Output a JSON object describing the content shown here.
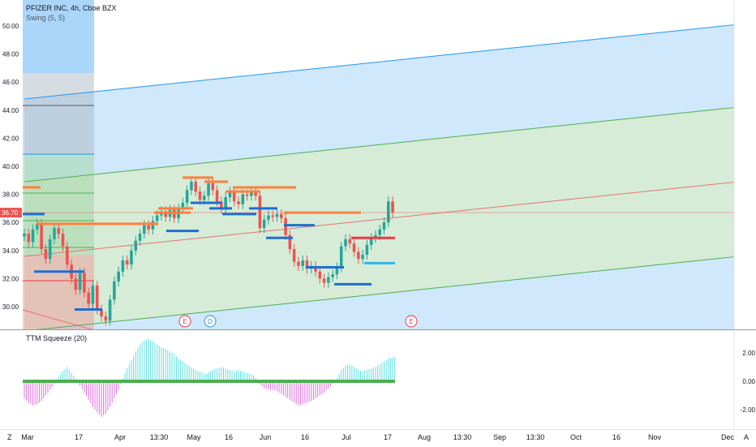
{
  "legend": {
    "symbol": "PFIZER INC, 4h, Cboe BZX",
    "indicator": "Swing (5, 5)"
  },
  "osc_legend": "TTM Squeeze (20)",
  "price_axis": [
    "50.00",
    "48.00",
    "46.00",
    "44.00",
    "42.00",
    "40.00",
    "38.00",
    "36.00",
    "34.00",
    "32.00",
    "30.00"
  ],
  "price_tag": "36.70",
  "osc_axis": [
    "2.00",
    "0.00",
    "-2.00"
  ],
  "events": [
    {
      "label": "E",
      "color": "#f23645"
    },
    {
      "label": "D",
      "color": "#2196f3"
    },
    {
      "label": "E",
      "color": "#f23645"
    }
  ],
  "time_axis": [
    "Mar",
    "17",
    "Apr",
    "13:30",
    "May",
    "16",
    "Jun",
    "16",
    "Jul",
    "17",
    "Aug",
    "13:30",
    "Sep",
    "13:30",
    "Oct",
    "16",
    "Nov",
    "Dec"
  ],
  "bottom_buttons": {
    "left": "Z",
    "right": "A"
  },
  "colors": {
    "bull": "#26a69a",
    "bear": "#ef5350",
    "channel_blue": "#2196f3",
    "channel_green": "#4caf50",
    "channel_red": "#e57373",
    "swing_orange": "#ff7f3f",
    "swing_blue": "#1e6fd0",
    "swing_red": "#f23645",
    "swing_cyan": "#30b4e6",
    "osc_pos": "#5ae0e0",
    "osc_neg": "#e070e0",
    "zero_line": "#4caf50",
    "tag_bg": "#ef5350"
  },
  "chart_data": {
    "type": "candlestick",
    "title": "PFIZER INC, 4h, Cboe BZX",
    "ylim": [
      29,
      51
    ],
    "last_price": 36.7,
    "closes": [
      35.2,
      34.6,
      35.5,
      35.9,
      34.1,
      33.4,
      34.8,
      35.6,
      35.2,
      34.3,
      33.0,
      32.0,
      31.2,
      32.4,
      31.0,
      30.2,
      31.5,
      29.8,
      29.3,
      29.0,
      30.5,
      31.8,
      32.5,
      33.3,
      33.0,
      34.0,
      34.7,
      35.2,
      35.8,
      35.5,
      36.1,
      36.5,
      36.8,
      36.4,
      36.9,
      36.3,
      37.0,
      37.4,
      38.3,
      38.9,
      38.2,
      37.6,
      37.9,
      38.8,
      38.3,
      37.5,
      37.0,
      37.8,
      38.2,
      37.5,
      37.3,
      38.0,
      37.9,
      38.2,
      37.9,
      35.6,
      36.2,
      36.5,
      36.4,
      36.6,
      36.3,
      35.1,
      34.1,
      33.2,
      32.9,
      33.3,
      32.7,
      32.9,
      32.5,
      32.0,
      31.7,
      32.1,
      32.3,
      32.8,
      34.3,
      34.8,
      34.5,
      33.9,
      33.4,
      33.7,
      34.4,
      34.9,
      35.1,
      35.5,
      36.0,
      37.5,
      36.7
    ],
    "ttm_squeeze": [
      -1.2,
      -1.5,
      -1.7,
      -1.6,
      -1.4,
      -1.0,
      -0.6,
      -0.2,
      0.3,
      0.7,
      1.0,
      0.6,
      0.2,
      -0.3,
      -0.8,
      -1.3,
      -1.8,
      -2.2,
      -2.5,
      -2.3,
      -1.8,
      -1.2,
      -0.6,
      0.2,
      0.9,
      1.5,
      2.1,
      2.6,
      2.9,
      3.0,
      2.8,
      2.6,
      2.4,
      2.3,
      2.1,
      1.9,
      1.6,
      1.4,
      1.2,
      1.0,
      0.8,
      0.7,
      0.5,
      0.6,
      0.8,
      0.9,
      1.0,
      0.9,
      0.8,
      0.7,
      0.8,
      0.7,
      0.6,
      0.5,
      0.3,
      -0.2,
      -0.5,
      -0.6,
      -0.6,
      -0.7,
      -0.9,
      -1.1,
      -1.3,
      -1.5,
      -1.7,
      -1.6,
      -1.5,
      -1.4,
      -1.2,
      -1.0,
      -0.8,
      -0.5,
      -0.2,
      0.2,
      0.8,
      1.1,
      1.2,
      1.0,
      0.8,
      0.7,
      0.8,
      0.9,
      1.0,
      1.2,
      1.4,
      1.6,
      1.7
    ],
    "swing_levels": [
      {
        "price": 38.5,
        "color": "orange"
      },
      {
        "price": 36.6,
        "color": "blue"
      },
      {
        "price": 35.9,
        "color": "orange"
      },
      {
        "price": 32.5,
        "color": "blue"
      },
      {
        "price": 29.8,
        "color": "blue"
      },
      {
        "price": 36.7,
        "color": "orange"
      },
      {
        "price": 37.0,
        "color": "orange"
      },
      {
        "price": 35.4,
        "color": "blue"
      },
      {
        "price": 39.2,
        "color": "orange"
      },
      {
        "price": 38.9,
        "color": "orange"
      },
      {
        "price": 37.4,
        "color": "blue"
      },
      {
        "price": 37.0,
        "color": "blue"
      },
      {
        "price": 38.5,
        "color": "orange"
      },
      {
        "price": 38.2,
        "color": "orange"
      },
      {
        "price": 36.6,
        "color": "blue"
      },
      {
        "price": 37.0,
        "color": "blue"
      },
      {
        "price": 36.7,
        "color": "orange"
      },
      {
        "price": 34.9,
        "color": "blue"
      },
      {
        "price": 35.8,
        "color": "blue"
      },
      {
        "price": 32.8,
        "color": "blue"
      },
      {
        "price": 31.6,
        "color": "blue"
      },
      {
        "price": 34.9,
        "color": "red"
      },
      {
        "price": 33.1,
        "color": "cyan"
      }
    ]
  }
}
